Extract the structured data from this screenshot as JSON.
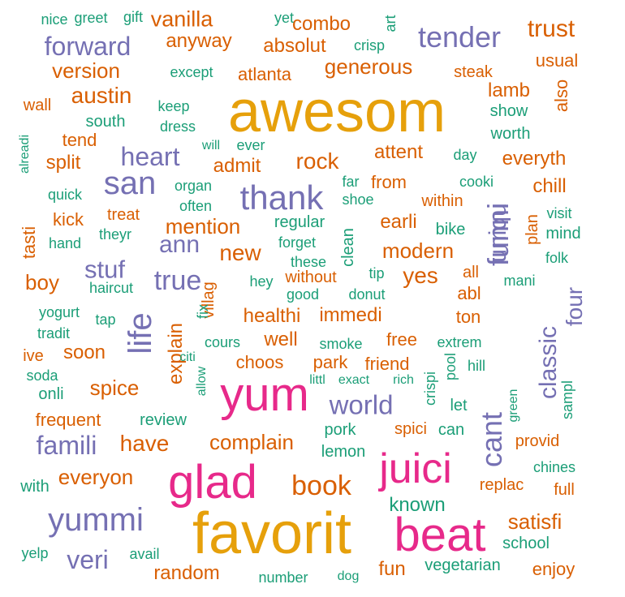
{
  "palette": {
    "orange": "#d95f02",
    "green": "#1b9e77",
    "purple": "#7570b3",
    "magenta": "#e7298a",
    "gold": "#e6a00b"
  },
  "words": [
    {
      "text": "awesom",
      "color": "gold"
    },
    {
      "text": "favorit",
      "color": "gold"
    },
    {
      "text": "yum",
      "color": "magenta"
    },
    {
      "text": "glad",
      "color": "magenta"
    },
    {
      "text": "beat",
      "color": "magenta"
    },
    {
      "text": "juici",
      "color": "magenta"
    },
    {
      "text": "thank",
      "color": "purple"
    },
    {
      "text": "san",
      "color": "purple"
    },
    {
      "text": "life",
      "color": "purple"
    },
    {
      "text": "yummi",
      "color": "purple"
    },
    {
      "text": "funni",
      "color": "purple"
    },
    {
      "text": "cant",
      "color": "purple"
    },
    {
      "text": "tender",
      "color": "purple"
    },
    {
      "text": "forward",
      "color": "purple"
    },
    {
      "text": "heart",
      "color": "purple"
    },
    {
      "text": "true",
      "color": "purple"
    },
    {
      "text": "world",
      "color": "purple"
    },
    {
      "text": "famili",
      "color": "purple"
    },
    {
      "text": "veri",
      "color": "purple"
    },
    {
      "text": "uniqu",
      "color": "purple"
    },
    {
      "text": "classic",
      "color": "purple"
    },
    {
      "text": "four",
      "color": "purple"
    },
    {
      "text": "stuf",
      "color": "purple"
    },
    {
      "text": "ann",
      "color": "purple"
    },
    {
      "text": "trust",
      "color": "orange"
    },
    {
      "text": "vanilla",
      "color": "orange"
    },
    {
      "text": "combo",
      "color": "orange"
    },
    {
      "text": "anyway",
      "color": "orange"
    },
    {
      "text": "absolut",
      "color": "orange"
    },
    {
      "text": "version",
      "color": "orange"
    },
    {
      "text": "generous",
      "color": "orange"
    },
    {
      "text": "atlanta",
      "color": "orange"
    },
    {
      "text": "steak",
      "color": "orange"
    },
    {
      "text": "usual",
      "color": "orange"
    },
    {
      "text": "austin",
      "color": "orange"
    },
    {
      "text": "wall",
      "color": "orange"
    },
    {
      "text": "lamb",
      "color": "orange"
    },
    {
      "text": "also",
      "color": "orange"
    },
    {
      "text": "tend",
      "color": "orange"
    },
    {
      "text": "split",
      "color": "orange"
    },
    {
      "text": "admit",
      "color": "orange"
    },
    {
      "text": "rock",
      "color": "orange"
    },
    {
      "text": "attent",
      "color": "orange"
    },
    {
      "text": "everyth",
      "color": "orange"
    },
    {
      "text": "chill",
      "color": "orange"
    },
    {
      "text": "from",
      "color": "orange"
    },
    {
      "text": "within",
      "color": "orange"
    },
    {
      "text": "kick",
      "color": "orange"
    },
    {
      "text": "treat",
      "color": "orange"
    },
    {
      "text": "mention",
      "color": "orange"
    },
    {
      "text": "earli",
      "color": "orange"
    },
    {
      "text": "tasti",
      "color": "orange"
    },
    {
      "text": "new",
      "color": "orange"
    },
    {
      "text": "modern",
      "color": "orange"
    },
    {
      "text": "plan",
      "color": "orange"
    },
    {
      "text": "boy",
      "color": "orange"
    },
    {
      "text": "yes",
      "color": "orange"
    },
    {
      "text": "all",
      "color": "orange"
    },
    {
      "text": "abl",
      "color": "orange"
    },
    {
      "text": "without",
      "color": "orange"
    },
    {
      "text": "explain",
      "color": "orange"
    },
    {
      "text": "villag",
      "color": "orange"
    },
    {
      "text": "healthi",
      "color": "orange"
    },
    {
      "text": "immedi",
      "color": "orange"
    },
    {
      "text": "ton",
      "color": "orange"
    },
    {
      "text": "well",
      "color": "orange"
    },
    {
      "text": "free",
      "color": "orange"
    },
    {
      "text": "ive",
      "color": "orange"
    },
    {
      "text": "soon",
      "color": "orange"
    },
    {
      "text": "choos",
      "color": "orange"
    },
    {
      "text": "park",
      "color": "orange"
    },
    {
      "text": "friend",
      "color": "orange"
    },
    {
      "text": "spice",
      "color": "orange"
    },
    {
      "text": "frequent",
      "color": "orange"
    },
    {
      "text": "have",
      "color": "orange"
    },
    {
      "text": "complain",
      "color": "orange"
    },
    {
      "text": "spici",
      "color": "orange"
    },
    {
      "text": "provid",
      "color": "orange"
    },
    {
      "text": "everyon",
      "color": "orange"
    },
    {
      "text": "book",
      "color": "orange"
    },
    {
      "text": "replac",
      "color": "orange"
    },
    {
      "text": "full",
      "color": "orange"
    },
    {
      "text": "satisfi",
      "color": "orange"
    },
    {
      "text": "random",
      "color": "orange"
    },
    {
      "text": "fun",
      "color": "orange"
    },
    {
      "text": "enjoy",
      "color": "orange"
    },
    {
      "text": "nice",
      "color": "green"
    },
    {
      "text": "greet",
      "color": "green"
    },
    {
      "text": "gift",
      "color": "green"
    },
    {
      "text": "yet",
      "color": "green"
    },
    {
      "text": "art",
      "color": "green"
    },
    {
      "text": "crisp",
      "color": "green"
    },
    {
      "text": "except",
      "color": "green"
    },
    {
      "text": "keep",
      "color": "green"
    },
    {
      "text": "dress",
      "color": "green"
    },
    {
      "text": "south",
      "color": "green"
    },
    {
      "text": "show",
      "color": "green"
    },
    {
      "text": "worth",
      "color": "green"
    },
    {
      "text": "alreadi",
      "color": "green"
    },
    {
      "text": "will",
      "color": "green"
    },
    {
      "text": "ever",
      "color": "green"
    },
    {
      "text": "day",
      "color": "green"
    },
    {
      "text": "organ",
      "color": "green"
    },
    {
      "text": "far",
      "color": "green"
    },
    {
      "text": "cooki",
      "color": "green"
    },
    {
      "text": "quick",
      "color": "green"
    },
    {
      "text": "often",
      "color": "green"
    },
    {
      "text": "shoe",
      "color": "green"
    },
    {
      "text": "theyr",
      "color": "green"
    },
    {
      "text": "regular",
      "color": "green"
    },
    {
      "text": "bike",
      "color": "green"
    },
    {
      "text": "visit",
      "color": "green"
    },
    {
      "text": "hand",
      "color": "green"
    },
    {
      "text": "forget",
      "color": "green"
    },
    {
      "text": "clean",
      "color": "green"
    },
    {
      "text": "mind",
      "color": "green"
    },
    {
      "text": "these",
      "color": "green"
    },
    {
      "text": "folk",
      "color": "green"
    },
    {
      "text": "tip",
      "color": "green"
    },
    {
      "text": "hey",
      "color": "green"
    },
    {
      "text": "haircut",
      "color": "green"
    },
    {
      "text": "good",
      "color": "green"
    },
    {
      "text": "donut",
      "color": "green"
    },
    {
      "text": "mani",
      "color": "green"
    },
    {
      "text": "yogurt",
      "color": "green"
    },
    {
      "text": "tap",
      "color": "green"
    },
    {
      "text": "fix",
      "color": "green"
    },
    {
      "text": "tradit",
      "color": "green"
    },
    {
      "text": "cours",
      "color": "green"
    },
    {
      "text": "smoke",
      "color": "green"
    },
    {
      "text": "extrem",
      "color": "green"
    },
    {
      "text": "citi",
      "color": "green"
    },
    {
      "text": "hill",
      "color": "green"
    },
    {
      "text": "soda",
      "color": "green"
    },
    {
      "text": "allow",
      "color": "green"
    },
    {
      "text": "littl",
      "color": "green"
    },
    {
      "text": "exact",
      "color": "green"
    },
    {
      "text": "rich",
      "color": "green"
    },
    {
      "text": "pool",
      "color": "green"
    },
    {
      "text": "onli",
      "color": "green"
    },
    {
      "text": "crispi",
      "color": "green"
    },
    {
      "text": "let",
      "color": "green"
    },
    {
      "text": "green",
      "color": "green"
    },
    {
      "text": "sampl",
      "color": "green"
    },
    {
      "text": "review",
      "color": "green"
    },
    {
      "text": "pork",
      "color": "green"
    },
    {
      "text": "can",
      "color": "green"
    },
    {
      "text": "lemon",
      "color": "green"
    },
    {
      "text": "chines",
      "color": "green"
    },
    {
      "text": "with",
      "color": "green"
    },
    {
      "text": "known",
      "color": "green"
    },
    {
      "text": "school",
      "color": "green"
    },
    {
      "text": "yelp",
      "color": "green"
    },
    {
      "text": "avail",
      "color": "green"
    },
    {
      "text": "vegetarian",
      "color": "green"
    },
    {
      "text": "number",
      "color": "green"
    },
    {
      "text": "dog",
      "color": "green"
    }
  ]
}
